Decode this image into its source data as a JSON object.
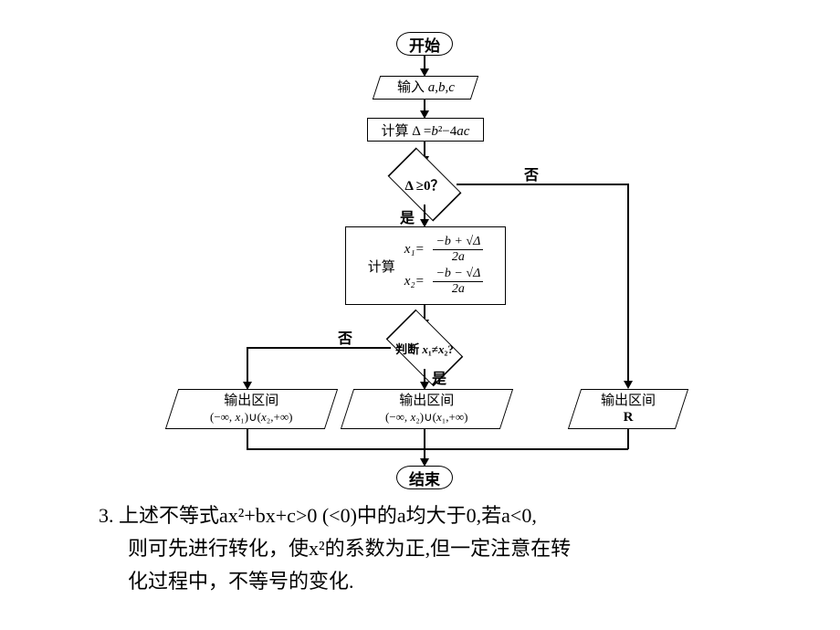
{
  "flowchart": {
    "type": "flowchart",
    "background_color": "#ffffff",
    "line_color": "#000000",
    "nodes": {
      "start": {
        "label": "开始"
      },
      "input": {
        "label_html": "输入 <i>a</i>,<i>b</i>,<i>c</i>"
      },
      "calc_delta": {
        "label_html": "计算 Δ =<i>b</i>²−4<i>ac</i>"
      },
      "dec1": {
        "label": "Δ ≥0？"
      },
      "calc_roots": {
        "prefix": "计算",
        "eq1_lhs": "x₁=",
        "eq1_num": "−b + √Δ",
        "eq1_den": "2a",
        "eq2_lhs": "x₂=",
        "eq2_num": "−b − √Δ",
        "eq2_den": "2a"
      },
      "dec2": {
        "label_html": "判断 <i>x</i>₁≠<i>x</i>₂?"
      },
      "out_left": {
        "line1": "输出区间",
        "line2_html": "(−∞, <i>x</i>₁)∪(<i>x</i>₂,+∞)"
      },
      "out_mid": {
        "line1": "输出区间",
        "line2_html": "(−∞, <i>x</i>₂)∪(<i>x</i>₁,+∞)"
      },
      "out_right": {
        "line1": "输出区间",
        "line2": "R"
      },
      "end": {
        "label": "结束"
      }
    },
    "edge_labels": {
      "yes": "是",
      "no": "否"
    }
  },
  "bottom": {
    "line1": "3. 上述不等式ax²+bx+c>0 (<0)中的a均大于0,若a<0,",
    "line2": "则可先进行转化，使x²的系数为正,但一定注意在转",
    "line3": "化过程中，不等号的变化."
  }
}
